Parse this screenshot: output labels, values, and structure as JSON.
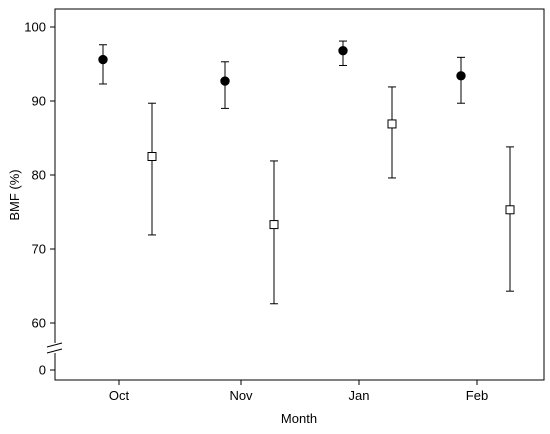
{
  "chart_data": {
    "type": "scatter",
    "title": "",
    "xlabel": "Month",
    "ylabel": "BMF (%)",
    "categories": [
      "Oct",
      "Nov",
      "Jan",
      "Feb"
    ],
    "y_ticks": [
      0,
      60,
      70,
      80,
      90,
      100
    ],
    "y_axis_break": true,
    "ylim": [
      58,
      102
    ],
    "grid": false,
    "legend": "none",
    "series": [
      {
        "marker": "filled-circle",
        "color": "#000000",
        "values": [
          95.6,
          92.7,
          96.8,
          93.4
        ],
        "err_low": [
          92.3,
          89.0,
          94.8,
          89.7
        ],
        "err_high": [
          97.6,
          95.3,
          98.1,
          95.9
        ]
      },
      {
        "marker": "open-square",
        "color": "#ffffff",
        "values": [
          82.5,
          73.3,
          86.9,
          75.3
        ],
        "err_low": [
          71.9,
          62.6,
          79.6,
          64.3
        ],
        "err_high": [
          89.7,
          81.9,
          91.9,
          83.8
        ]
      }
    ]
  }
}
